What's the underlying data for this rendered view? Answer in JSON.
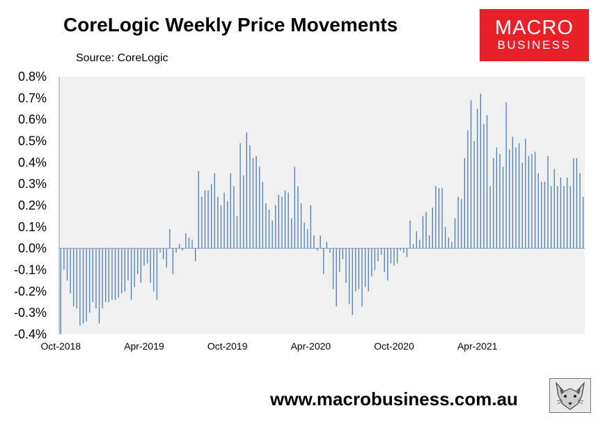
{
  "header": {
    "title": "CoreLogic Weekly Price Movements",
    "source": "Source: CoreLogic"
  },
  "logo": {
    "line1": "MACRO",
    "line2": "BUSINESS",
    "color": "#e8202a"
  },
  "footer": {
    "url": "www.macrobusiness.com.au"
  },
  "colors": {
    "bar": "#4a7cb5",
    "plot_background": "#f0f0f0",
    "zero_line": "#7a9cc6"
  },
  "chart_data": {
    "type": "bar",
    "title": "CoreLogic Weekly Price Movements",
    "xlabel": "",
    "ylabel": "",
    "ylim": [
      -0.4,
      0.8
    ],
    "yticks": [
      "-0.4%",
      "-0.3%",
      "-0.2%",
      "-0.1%",
      "0.0%",
      "0.1%",
      "0.2%",
      "0.3%",
      "0.4%",
      "0.5%",
      "0.6%",
      "0.7%",
      "0.8%"
    ],
    "xticks": [
      {
        "label": "Oct-2018",
        "index": 0
      },
      {
        "label": "Apr-2019",
        "index": 26
      },
      {
        "label": "Oct-2019",
        "index": 52
      },
      {
        "label": "Apr-2020",
        "index": 78
      },
      {
        "label": "Oct-2020",
        "index": 104
      },
      {
        "label": "Apr-2021",
        "index": 130
      }
    ],
    "grid": false,
    "legend": "none",
    "unit": "%",
    "series": [
      {
        "values": [
          -0.4,
          -0.1,
          -0.15,
          -0.21,
          -0.27,
          -0.28,
          -0.36,
          -0.35,
          -0.34,
          -0.3,
          -0.25,
          -0.28,
          -0.35,
          -0.28,
          -0.25,
          -0.25,
          -0.24,
          -0.24,
          -0.23,
          -0.21,
          -0.2,
          -0.15,
          -0.24,
          -0.18,
          -0.12,
          -0.16,
          -0.08,
          -0.07,
          -0.16,
          -0.2,
          -0.24,
          -0.02,
          -0.05,
          -0.09,
          0.09,
          -0.12,
          -0.02,
          0.02,
          -0.01,
          0.07,
          0.05,
          0.04,
          -0.06,
          0.36,
          0.24,
          0.27,
          0.27,
          0.3,
          0.35,
          0.24,
          0.2,
          0.26,
          0.22,
          0.35,
          0.29,
          0.15,
          0.49,
          0.34,
          0.54,
          0.48,
          0.42,
          0.43,
          0.38,
          0.31,
          0.21,
          0.18,
          0.13,
          0.2,
          0.25,
          0.24,
          0.27,
          0.26,
          0.14,
          0.38,
          0.29,
          0.21,
          0.12,
          0.09,
          0.2,
          0.06,
          -0.01,
          0.06,
          -0.12,
          0.03,
          -0.02,
          -0.19,
          -0.27,
          -0.11,
          -0.05,
          -0.16,
          -0.26,
          -0.31,
          -0.2,
          -0.19,
          -0.27,
          -0.18,
          -0.2,
          -0.13,
          -0.1,
          -0.06,
          -0.03,
          -0.11,
          -0.15,
          -0.07,
          -0.08,
          -0.07,
          -0.01,
          -0.02,
          -0.04,
          0.13,
          0.02,
          0.08,
          0.04,
          0.15,
          0.17,
          0.06,
          0.19,
          0.29,
          0.28,
          0.28,
          0.1,
          0.05,
          0.03,
          0.14,
          0.24,
          0.23,
          0.42,
          0.55,
          0.69,
          0.5,
          0.65,
          0.72,
          0.58,
          0.62,
          0.29,
          0.42,
          0.47,
          0.44,
          0.38,
          0.68,
          0.46,
          0.52,
          0.47,
          0.49,
          0.4,
          0.51,
          0.43,
          0.44,
          0.45,
          0.35,
          0.31,
          0.31,
          0.43,
          0.29,
          0.37,
          0.29,
          0.33,
          0.29,
          0.33,
          0.29,
          0.42,
          0.42,
          0.35,
          0.24
        ]
      }
    ]
  }
}
